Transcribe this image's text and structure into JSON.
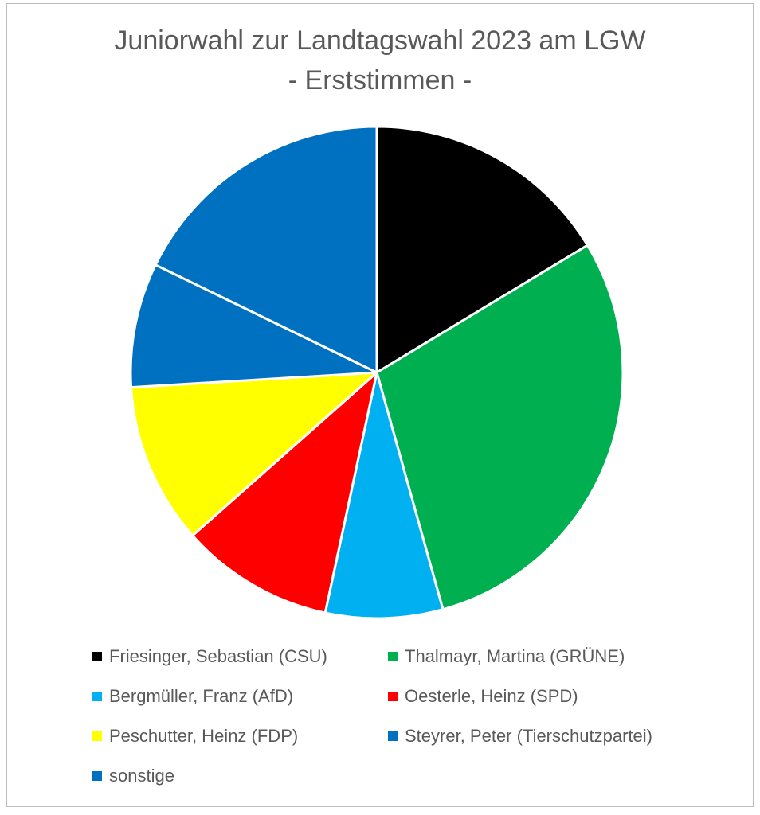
{
  "chart_data": {
    "type": "pie",
    "title": "Juniorwahl zur Landtagswahl 2023 am LGW",
    "subtitle": "- Erststimmen -",
    "slices": [
      {
        "label": "Friesinger, Sebastian (CSU)",
        "value": 17.0,
        "color": "#000000"
      },
      {
        "label": "Thalmayr, Martina (GRÜNE)",
        "value": 30.5,
        "color": "#00b050"
      },
      {
        "label": "Bergmüller, Franz (AfD)",
        "value": 8.0,
        "color": "#00b0f0"
      },
      {
        "label": "Oesterle, Heinz (SPD)",
        "value": 10.5,
        "color": "#ff0000"
      },
      {
        "label": "Peschutter, Heinz (FDP)",
        "value": 11.0,
        "color": "#ffff00"
      },
      {
        "label": "Steyrer, Peter (Tierschutzpartei)",
        "value": 8.5,
        "color": "#0070c0"
      },
      {
        "label": "sonstige",
        "value": 18.5,
        "color": "#0070c0"
      }
    ],
    "start_angle_deg": 0,
    "direction": "clockwise",
    "legend_position": "bottom"
  }
}
